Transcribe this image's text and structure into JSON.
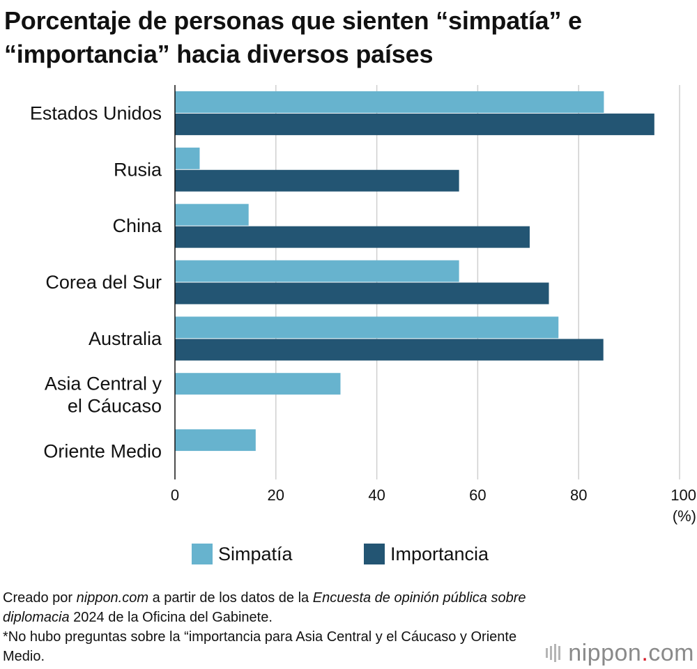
{
  "chart_data": {
    "type": "bar",
    "orientation": "horizontal",
    "title": "Porcentaje de personas que sienten “simpatía” e “importancia” hacia diversos países",
    "categories": [
      "Estados Unidos",
      "Rusia",
      "China",
      "Corea del Sur",
      "Australia",
      "Asia Central y el Cáucaso",
      "Oriente Medio"
    ],
    "category_lines": [
      [
        "Estados Unidos"
      ],
      [
        "Rusia"
      ],
      [
        "China"
      ],
      [
        "Corea del Sur"
      ],
      [
        "Australia"
      ],
      [
        "Asia Central y",
        "el Cáucaso"
      ],
      [
        "Oriente Medio"
      ]
    ],
    "series": [
      {
        "name": "Simpatía",
        "color": "#67b3ce",
        "values": [
          85.0,
          4.9,
          14.6,
          56.3,
          76.0,
          32.8,
          16.0
        ]
      },
      {
        "name": "Importancia",
        "color": "#235573",
        "values": [
          95.0,
          56.3,
          70.3,
          74.1,
          84.9,
          null,
          null
        ]
      }
    ],
    "x_ticks": [
      0,
      20,
      40,
      60,
      80,
      100
    ],
    "x_ticks_labels": [
      "0",
      "20",
      "40",
      "60",
      "80",
      "100"
    ],
    "xlim": [
      0,
      100
    ],
    "x_unit": "(%)",
    "grid": true,
    "legend_position": "bottom"
  },
  "footnote": {
    "line1_a": "Creado por ",
    "line1_b": "nippon.com",
    "line1_c": " a partir de los datos de la ",
    "line1_d": "Encuesta de opinión pública sobre diplomacia",
    "line1_e": " 2024 de la Oficina del Gabinete.",
    "line2": "*No hubo preguntas sobre la “importancia para Asia Central y el Cáucaso y Oriente Medio."
  },
  "brand": {
    "name_a": "nippon",
    "name_b": ".",
    "name_c": "com",
    "accent_color": "#d61d2a"
  }
}
